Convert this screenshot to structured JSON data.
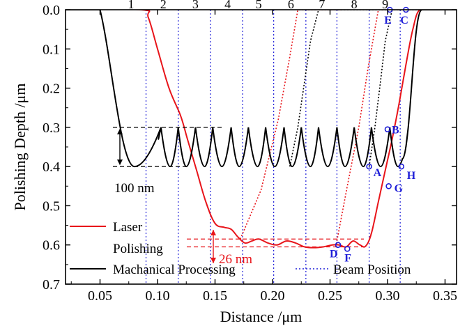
{
  "chart_data": {
    "type": "line",
    "xlabel": "Distance /μm",
    "ylabel": "Polishing Depth /μm",
    "xlim": [
      0.02,
      0.36
    ],
    "ylim": [
      0.0,
      0.7
    ],
    "y_inverted": true,
    "x_ticks": [
      "0.05",
      "0.10",
      "0.15",
      "0.20",
      "0.25",
      "0.30",
      "0.35"
    ],
    "x_tick_values": [
      0.05,
      0.1,
      0.15,
      0.2,
      0.25,
      0.3,
      0.35
    ],
    "y_ticks": [
      "0.0",
      "0.1",
      "0.2",
      "0.3",
      "0.4",
      "0.5",
      "0.6",
      "0.7"
    ],
    "y_tick_values": [
      0.0,
      0.1,
      0.2,
      0.3,
      0.4,
      0.5,
      0.6,
      0.7
    ],
    "grid": false,
    "legend_position": "bottom",
    "colors": {
      "laser": "#e8141a",
      "mechanical": "#000000",
      "beam": "#1f1fd8",
      "points": "#1f1fd8"
    },
    "series": [
      {
        "name": "Laser Polishing",
        "style": "solid",
        "color": "#e8141a",
        "x": [
          0.02,
          0.086,
          0.092,
          0.1,
          0.11,
          0.12,
          0.126,
          0.134,
          0.142,
          0.15,
          0.158,
          0.164,
          0.17,
          0.176,
          0.182,
          0.188,
          0.196,
          0.204,
          0.212,
          0.22,
          0.228,
          0.236,
          0.244,
          0.252,
          0.258,
          0.264,
          0.27,
          0.276,
          0.281,
          0.286,
          0.292,
          0.298,
          0.304,
          0.31,
          0.316,
          0.322,
          0.328,
          0.34,
          0.36
        ],
        "y": [
          0.0,
          0.0,
          0.02,
          0.1,
          0.2,
          0.27,
          0.33,
          0.41,
          0.49,
          0.545,
          0.555,
          0.56,
          0.58,
          0.595,
          0.59,
          0.585,
          0.595,
          0.6,
          0.59,
          0.595,
          0.605,
          0.607,
          0.605,
          0.6,
          0.6,
          0.605,
          0.59,
          0.6,
          0.603,
          0.57,
          0.49,
          0.41,
          0.33,
          0.24,
          0.14,
          0.05,
          0.0,
          0.0,
          0.0
        ]
      },
      {
        "name": "Machanical Processing",
        "style": "solid",
        "color": "#000000",
        "profile": "scallop",
        "scallop_top": 0.3,
        "scallop_bottom": 0.4,
        "x": [
          0.02,
          0.05,
          0.056,
          0.062,
          0.068,
          0.074,
          0.08,
          0.085,
          0.09,
          0.095,
          0.103,
          0.111,
          0.118,
          0.125,
          0.133,
          0.141,
          0.148,
          0.156,
          0.164,
          0.171,
          0.179,
          0.187,
          0.194,
          0.202,
          0.21,
          0.217,
          0.225,
          0.233,
          0.24,
          0.248,
          0.256,
          0.263,
          0.271,
          0.279,
          0.286,
          0.294,
          0.302,
          0.309,
          0.313,
          0.318,
          0.322,
          0.326,
          0.33,
          0.36
        ],
        "y": [
          0.0,
          0.0,
          0.05,
          0.15,
          0.25,
          0.33,
          0.38,
          0.4,
          0.39,
          0.36,
          0.3,
          0.4,
          0.3,
          0.4,
          0.3,
          0.4,
          0.3,
          0.4,
          0.3,
          0.4,
          0.3,
          0.4,
          0.3,
          0.4,
          0.3,
          0.4,
          0.3,
          0.4,
          0.3,
          0.4,
          0.3,
          0.4,
          0.3,
          0.4,
          0.3,
          0.4,
          0.3,
          0.4,
          0.38,
          0.3,
          0.2,
          0.1,
          0.0,
          0.0
        ]
      },
      {
        "name": "Beam Position",
        "style": "dotted",
        "color": "#1f1fd8",
        "x": [
          0.09,
          0.118,
          0.146,
          0.174,
          0.201,
          0.229,
          0.256,
          0.284,
          0.311
        ],
        "labels": [
          "1",
          "2",
          "3",
          "4",
          "5",
          "6",
          "7",
          "8",
          "9"
        ]
      }
    ],
    "dotted_paths": [
      {
        "color": "#e8141a",
        "x": [
          0.172,
          0.19,
          0.205,
          0.215,
          0.222,
          0.26
        ],
        "y": [
          0.585,
          0.46,
          0.28,
          0.12,
          0.0,
          0.0
        ]
      },
      {
        "color": "#e8141a",
        "x": [
          0.255,
          0.265,
          0.275,
          0.283,
          0.292,
          0.315
        ],
        "y": [
          0.605,
          0.45,
          0.3,
          0.15,
          0.0,
          0.0
        ]
      },
      {
        "color": "#000000",
        "x": [
          0.215,
          0.222,
          0.228,
          0.233,
          0.24,
          0.305
        ],
        "y": [
          0.4,
          0.3,
          0.18,
          0.08,
          0.0,
          0.0
        ]
      },
      {
        "color": "#000000",
        "x": [
          0.284,
          0.289,
          0.294,
          0.298,
          0.304,
          0.33
        ],
        "y": [
          0.4,
          0.3,
          0.18,
          0.08,
          0.0,
          0.0
        ]
      }
    ],
    "points": [
      {
        "label": "A",
        "x": 0.284,
        "y": 0.4
      },
      {
        "label": "B",
        "x": 0.3,
        "y": 0.305
      },
      {
        "label": "C",
        "x": 0.316,
        "y": 0.0
      },
      {
        "label": "D",
        "x": 0.257,
        "y": 0.6
      },
      {
        "label": "E",
        "x": 0.302,
        "y": 0.0
      },
      {
        "label": "F",
        "x": 0.265,
        "y": 0.61
      },
      {
        "label": "G",
        "x": 0.301,
        "y": 0.45
      },
      {
        "label": "H",
        "x": 0.312,
        "y": 0.4
      }
    ],
    "annotations": [
      {
        "text": "100 nm",
        "color": "#000000"
      },
      {
        "text": "26 nm",
        "color": "#e8141a"
      }
    ]
  }
}
